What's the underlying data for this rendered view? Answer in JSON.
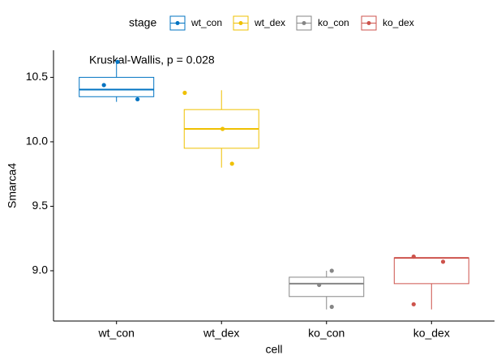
{
  "chart_data": {
    "type": "box",
    "annotation": "Kruskal-Wallis, p = 0.028",
    "x_label": "cell",
    "y_label": "Smarca4",
    "legend_title": "stage",
    "legend_position": "top",
    "categories": [
      "wt_con",
      "wt_dex",
      "ko_con",
      "ko_dex"
    ],
    "ylim": [
      8.61,
      10.71
    ],
    "yticks": [
      {
        "value": 9,
        "label": "9.0"
      },
      9.5,
      {
        "value": 10,
        "label": "10.0"
      },
      10.5
    ],
    "series": [
      {
        "name": "wt_con",
        "color": "#0073C2",
        "stats": {
          "min": 10.31,
          "q1": 10.35,
          "median": 10.405,
          "q3": 10.5,
          "max": 10.63
        },
        "points": [
          10.62,
          10.44,
          10.33
        ]
      },
      {
        "name": "wt_dex",
        "color": "#EFC000",
        "stats": {
          "min": 9.8,
          "q1": 9.95,
          "median": 10.1,
          "q3": 10.25,
          "max": 10.4
        },
        "points": [
          10.38,
          10.1,
          9.83
        ]
      },
      {
        "name": "ko_con",
        "color": "#868686",
        "stats": {
          "min": 8.7,
          "q1": 8.8,
          "median": 8.9,
          "q3": 8.95,
          "max": 9.0
        },
        "points": [
          9.0,
          8.89,
          8.72
        ]
      },
      {
        "name": "ko_dex",
        "color": "#CD534C",
        "stats": {
          "min": 8.7,
          "q1": 8.9,
          "median": 9.1,
          "q3": 9.1,
          "max": 9.1
        },
        "points": [
          9.11,
          9.07,
          8.74
        ]
      }
    ]
  }
}
